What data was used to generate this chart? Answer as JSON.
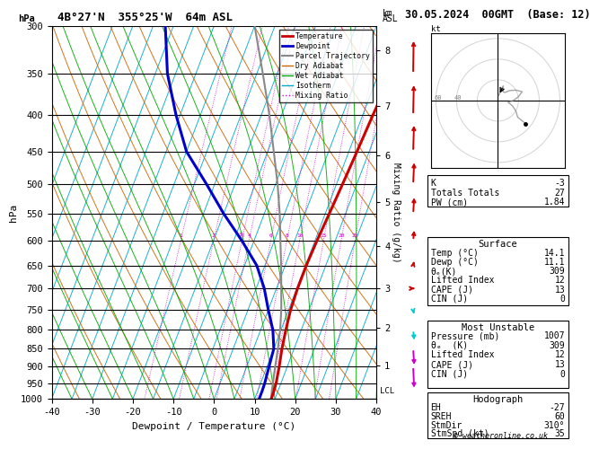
{
  "title_left": "4B°27'N  355°25'W  64m ASL",
  "title_right": "30.05.2024  00GMT  (Base: 12)",
  "xlabel": "Dewpoint / Temperature (°C)",
  "ylabel_left": "hPa",
  "background": "#ffffff",
  "temp_color": "#cc0000",
  "dewp_color": "#0000cc",
  "parcel_color": "#888888",
  "dry_adiabat_color": "#cc6600",
  "wet_adiabat_color": "#00aa00",
  "isotherm_color": "#00aacc",
  "mixing_ratio_color": "#cc00cc",
  "tmin": -40,
  "tmax": 40,
  "pmin": 300,
  "pmax": 1000,
  "skew": 35,
  "pressure_levels": [
    300,
    350,
    400,
    450,
    500,
    550,
    600,
    650,
    700,
    750,
    800,
    850,
    900,
    950,
    1000
  ],
  "temp_profile_p": [
    1000,
    975,
    950,
    900,
    850,
    800,
    750,
    700,
    650,
    600,
    550,
    500,
    450,
    400,
    350,
    300
  ],
  "temp_profile_T": [
    14.1,
    14.0,
    13.8,
    13.0,
    12.0,
    11.2,
    10.5,
    10.2,
    10.2,
    10.5,
    11.0,
    11.5,
    12.0,
    12.5,
    13.2,
    14.0
  ],
  "dewp_profile_p": [
    1000,
    975,
    950,
    900,
    850,
    800,
    750,
    700,
    650,
    600,
    550,
    500,
    450,
    400,
    350,
    300
  ],
  "dewp_profile_T": [
    11.1,
    11.1,
    11.0,
    10.5,
    10.0,
    8.0,
    5.0,
    2.0,
    -2.0,
    -8.0,
    -15.0,
    -22.0,
    -30.0,
    -36.0,
    -42.0,
    -47.0
  ],
  "parcel_profile_p": [
    1000,
    975,
    950,
    900,
    850,
    800,
    750,
    700,
    650,
    600,
    550,
    500,
    450,
    400,
    350,
    300
  ],
  "parcel_profile_T": [
    14.1,
    13.5,
    13.0,
    12.0,
    11.0,
    9.8,
    8.2,
    6.2,
    4.0,
    1.5,
    -1.2,
    -4.5,
    -8.5,
    -13.0,
    -18.5,
    -25.0
  ],
  "km_ticks": [
    1,
    2,
    3,
    4,
    5,
    6,
    7,
    8
  ],
  "km_pressures": [
    898,
    795,
    699,
    611,
    530,
    456,
    388,
    325
  ],
  "mixing_ratio_vals": [
    1,
    2,
    3.5,
    4,
    6,
    8,
    10,
    15,
    20,
    25
  ],
  "mixing_ratio_labels": [
    "1",
    "2",
    "3½",
    "4",
    "6",
    "8",
    "10",
    "15",
    "20",
    "25"
  ],
  "lcl_pressure": 975,
  "K_index": -3,
  "totals_totals": 27,
  "PW": 1.84,
  "surf_temp": 14.1,
  "surf_dewp": 11.1,
  "surf_theta_e": 309,
  "surf_lifted_index": 12,
  "surf_CAPE": 13,
  "surf_CIN": 0,
  "mu_pressure": 1007,
  "mu_theta_e": 309,
  "mu_lifted_index": 12,
  "mu_CAPE": 13,
  "mu_CIN": 0,
  "EH": -27,
  "SREH": 60,
  "StmDir": 310,
  "StmSpd": 35,
  "wind_p": [
    1000,
    950,
    900,
    850,
    800,
    750,
    700,
    650,
    600,
    550,
    500,
    450,
    400,
    350,
    300
  ],
  "wind_spd": [
    35,
    30,
    25,
    20,
    15,
    10,
    15,
    20,
    25,
    20,
    15,
    10,
    10,
    15,
    5
  ],
  "wind_dir": [
    310,
    310,
    310,
    300,
    290,
    280,
    270,
    260,
    250,
    240,
    230,
    220,
    210,
    200,
    190
  ],
  "wind_colors": [
    "#00cc00",
    "#00cc00",
    "#cc00cc",
    "#cc00cc",
    "#00cccc",
    "#00cccc",
    "#cc0000",
    "#cc0000",
    "#cc0000",
    "#cc0000",
    "#cc0000",
    "#cc0000",
    "#cc0000",
    "#cc0000",
    "#cc0000"
  ],
  "copyright": "© weatheronline.co.uk"
}
